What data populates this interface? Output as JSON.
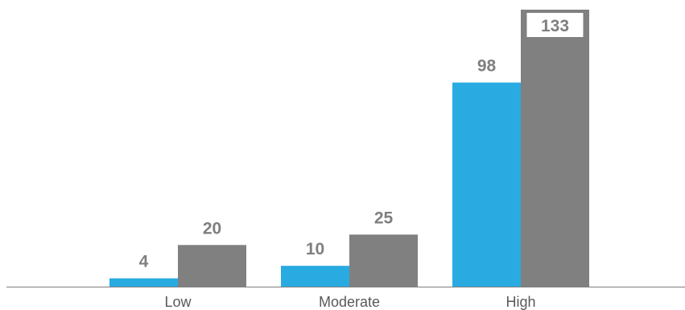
{
  "chart_data": {
    "type": "bar",
    "title": "",
    "xlabel": "",
    "ylabel": "",
    "categories": [
      "Low",
      "Moderate",
      "High"
    ],
    "series": [
      {
        "values": [
          4,
          10,
          98
        ],
        "color": "#29abe2"
      },
      {
        "values": [
          20,
          25,
          133
        ],
        "color": "#808080"
      }
    ],
    "ylim": [
      0,
      133
    ],
    "grid": false,
    "legend": "none",
    "data_labels": true,
    "axis_color": "#7f7f7f"
  }
}
